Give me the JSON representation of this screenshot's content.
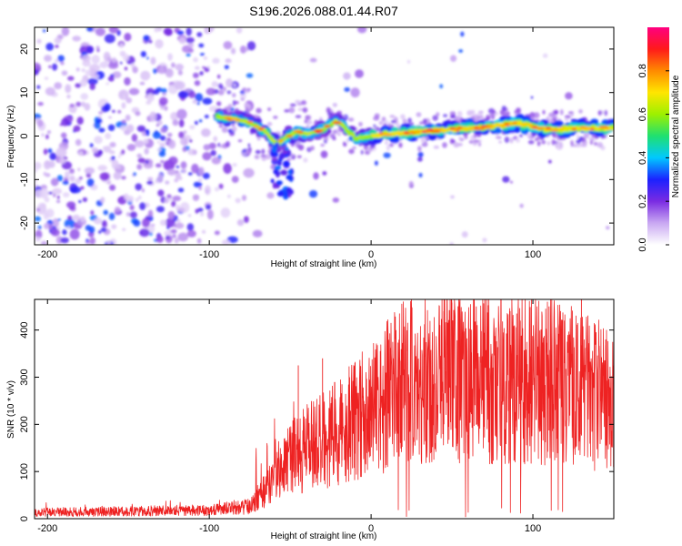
{
  "title": "S196.2026.088.01.44.R07",
  "chart_data": [
    {
      "type": "heatmap",
      "xlabel": "Height of straight line (km)",
      "ylabel": "Frequency (Hz)",
      "xlim": [
        -208,
        150
      ],
      "ylim": [
        -25,
        25
      ],
      "xticks": [
        -200,
        -100,
        0,
        100
      ],
      "yticks": [
        -20,
        -10,
        0,
        10,
        20
      ],
      "colorbar": {
        "label": "Normalized spectral amplitude",
        "range": [
          0.0,
          1.0
        ],
        "ticks": [
          0.0,
          0.2,
          0.4,
          0.6,
          0.8
        ],
        "tick_labels": [
          "0.0",
          "0.2",
          "0.4",
          "0.6",
          "0.8"
        ],
        "colors": [
          "#ffffff",
          "#c9a8f2",
          "#7a2be2",
          "#1b22ff",
          "#00c8ff",
          "#20e070",
          "#9ef000",
          "#ffe600",
          "#ff8a00",
          "#ff1a1a",
          "#ff0080"
        ]
      },
      "ridge": {
        "x": [
          -95,
          -85,
          -75,
          -65,
          -58,
          -52,
          -45,
          -38,
          -30,
          -22,
          -18,
          -10,
          0,
          10,
          30,
          50,
          70,
          90,
          110,
          130,
          150
        ],
        "frequency": [
          4.5,
          4,
          3,
          1,
          -2,
          0,
          1,
          0.5,
          1.5,
          3.5,
          2.5,
          -0.5,
          0,
          0.5,
          1,
          1.5,
          2,
          3,
          1.5,
          1.8,
          1.8
        ]
      }
    },
    {
      "type": "line",
      "xlabel": "Height of straight line (km)",
      "ylabel": "SNR (10 * v/v)",
      "xlim": [
        -208,
        150
      ],
      "ylim": [
        0,
        465
      ],
      "xticks": [
        -200,
        -100,
        0,
        100
      ],
      "yticks": [
        0,
        100,
        200,
        300,
        400
      ],
      "series": [
        {
          "name": "SNR",
          "color": "#ee2222",
          "envelope_x": [
            -208,
            -150,
            -100,
            -75,
            -65,
            -55,
            -45,
            -35,
            -20,
            -10,
            0,
            15,
            30,
            50,
            75,
            100,
            125,
            150
          ],
          "envelope_y": [
            15,
            18,
            20,
            30,
            70,
            120,
            150,
            170,
            200,
            230,
            250,
            300,
            330,
            335,
            330,
            320,
            300,
            270
          ],
          "peak_x": [
            -45,
            -30,
            -18,
            -10,
            15,
            45,
            65,
            90,
            110,
            130,
            145
          ],
          "peak_y": [
            325,
            340,
            285,
            330,
            400,
            440,
            450,
            435,
            450,
            465,
            380
          ]
        }
      ]
    }
  ]
}
